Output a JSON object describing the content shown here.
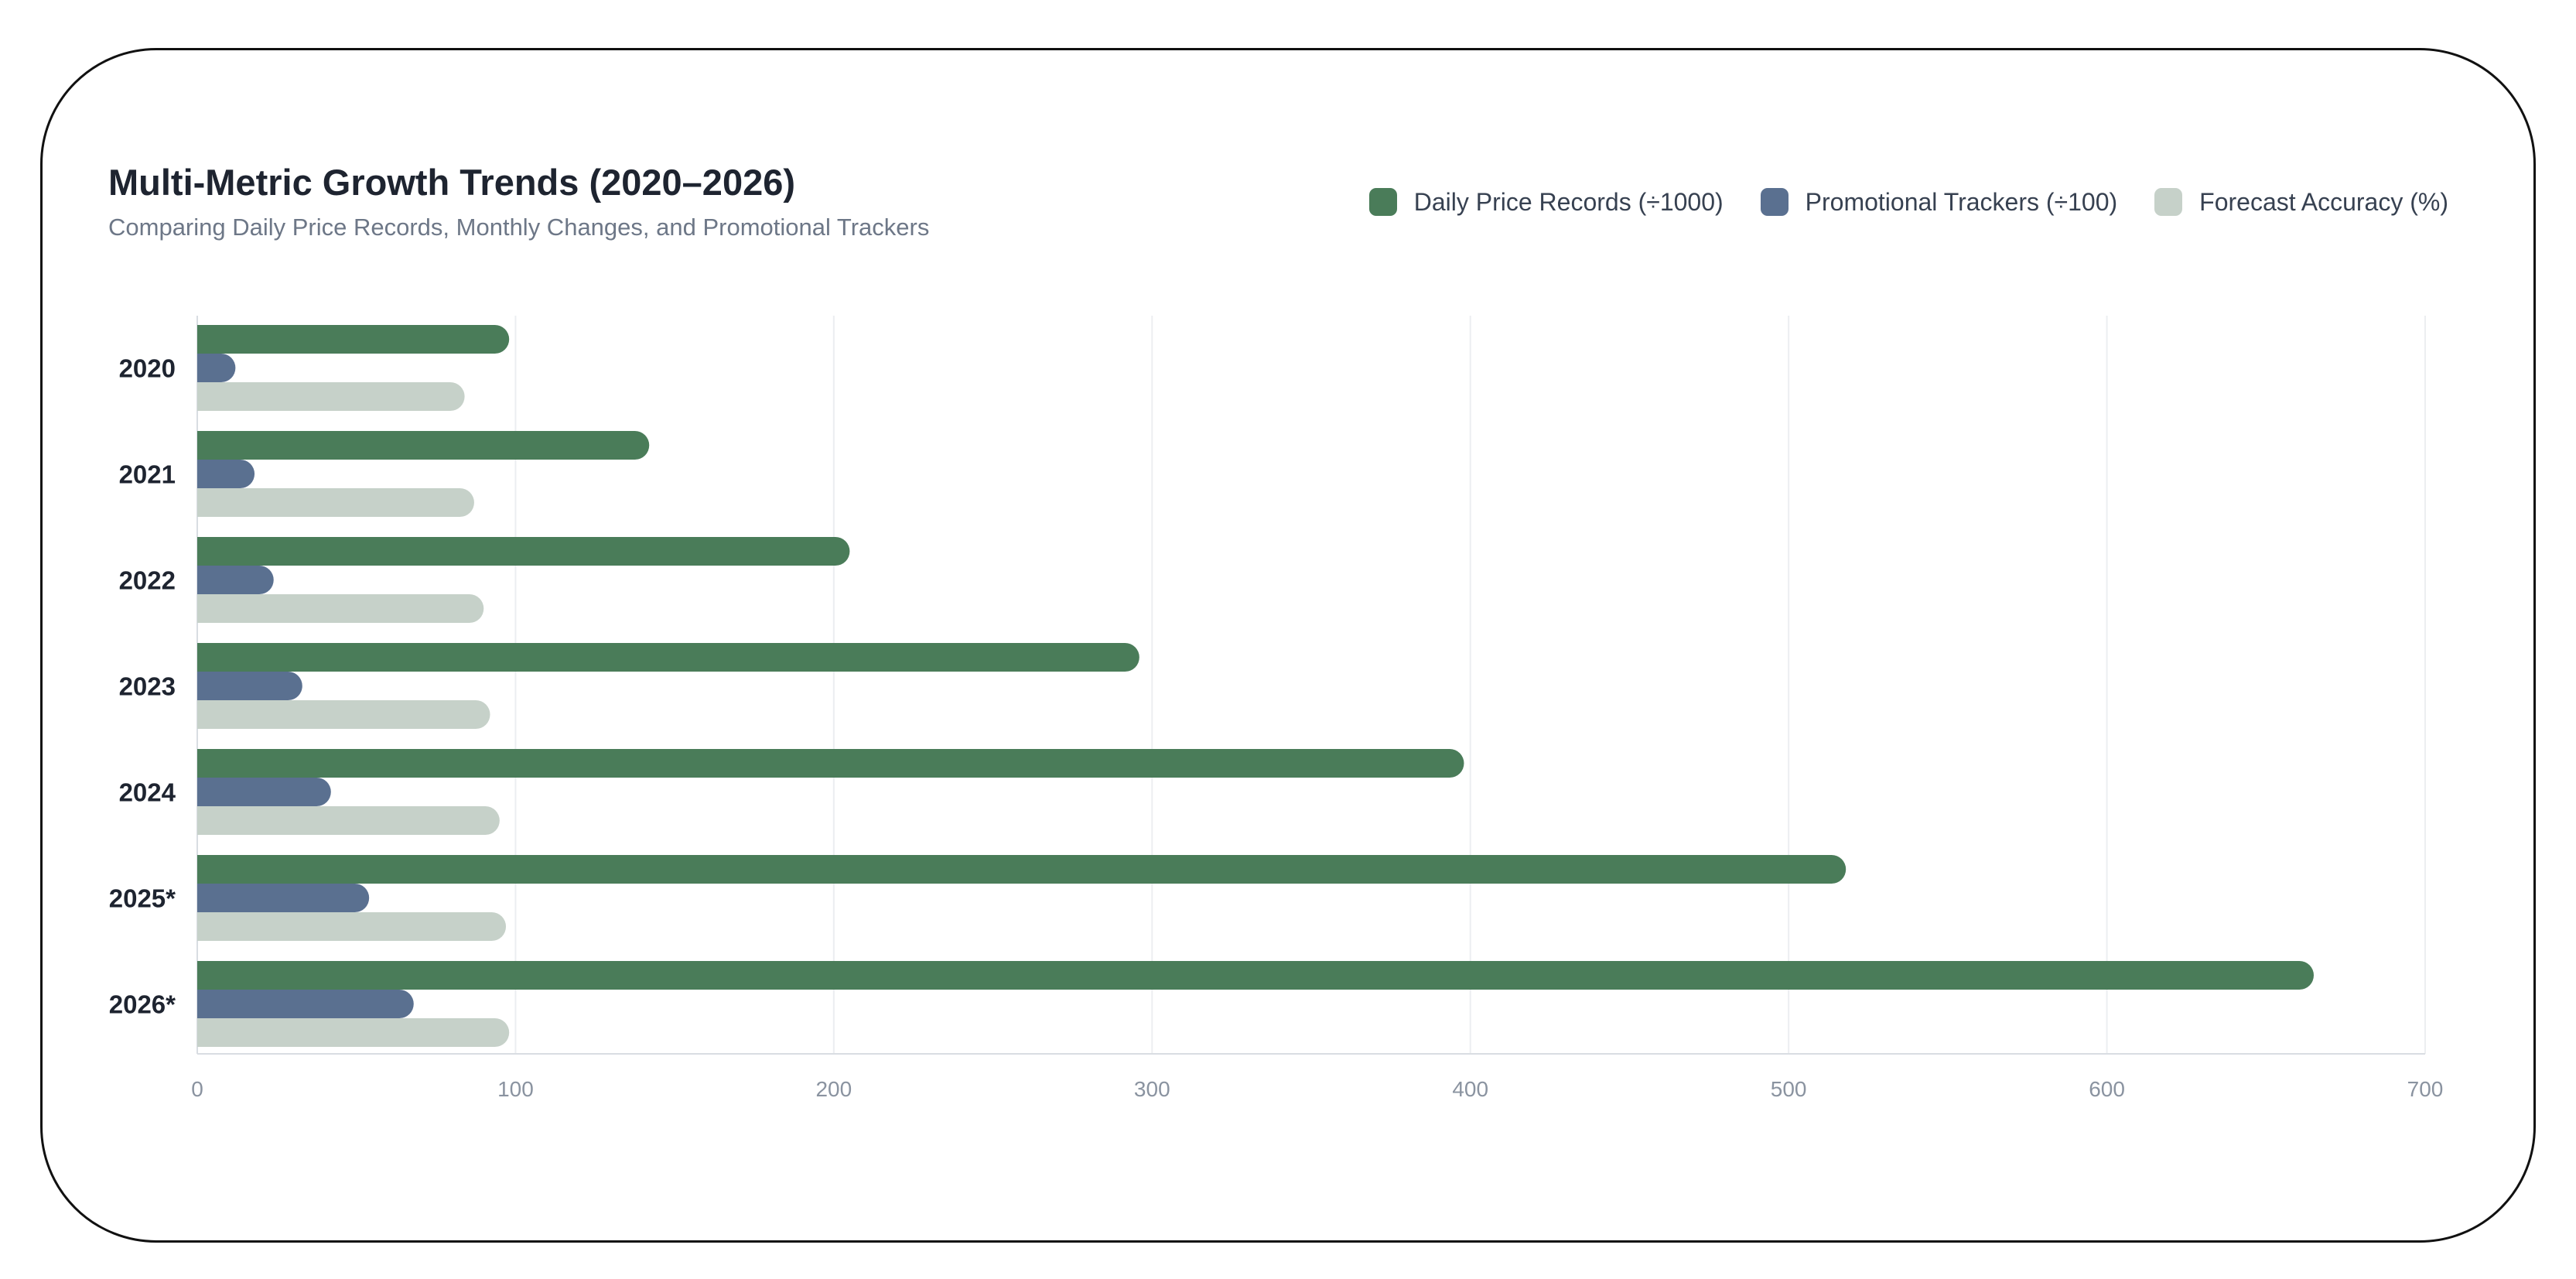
{
  "chart_data": {
    "type": "bar",
    "orientation": "horizontal",
    "title": "Multi-Metric Growth Trends (2020–2026)",
    "subtitle": "Comparing Daily Price Records, Monthly Changes, and Promotional Trackers",
    "categories": [
      "2020",
      "2021",
      "2022",
      "2023",
      "2024",
      "2025*",
      "2026*"
    ],
    "series": [
      {
        "name": "Daily Price Records (÷1000)",
        "color": "#4a7c59",
        "values": [
          98,
          142,
          205,
          296,
          398,
          518,
          665
        ]
      },
      {
        "name": "Promotional Trackers (÷100)",
        "color": "#5a7090",
        "values": [
          12,
          18,
          24,
          33,
          42,
          54,
          68
        ]
      },
      {
        "name": "Forecast Accuracy (%)",
        "color": "#c6d1c9",
        "values": [
          84,
          87,
          90,
          92,
          95,
          97,
          98
        ]
      }
    ],
    "xlim": [
      0,
      700
    ],
    "xticks": [
      "0",
      "100",
      "200",
      "300",
      "400",
      "500",
      "600",
      "700"
    ],
    "xlabel": "",
    "ylabel": "",
    "grid": "vertical",
    "legend": "top-right"
  }
}
